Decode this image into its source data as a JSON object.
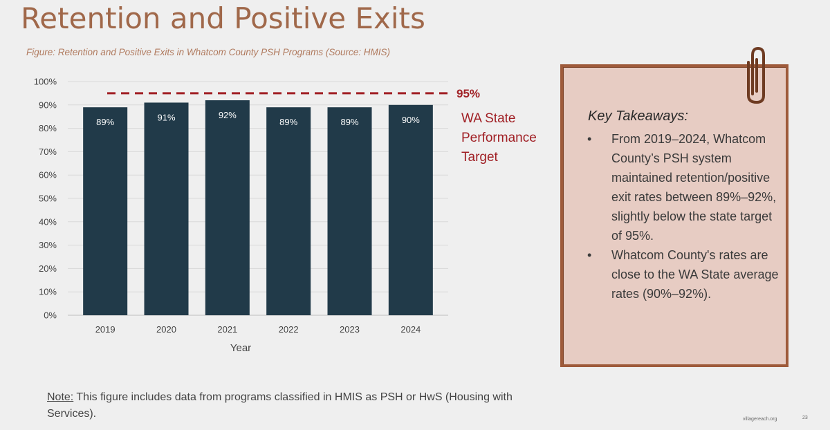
{
  "slide": {
    "title": "Retention and Positive Exits",
    "figure_caption": "Figure: Retention and Positive Exits in Whatcom County PSH Programs (Source: HMIS)",
    "note_label": "Note:",
    "note_text": " This figure includes data from programs classified in HMIS as PSH or HwS (Housing with Services).",
    "footer_site": "villagereach.org",
    "page_number": "23"
  },
  "chart_data": {
    "type": "bar",
    "categories": [
      "2019",
      "2020",
      "2021",
      "2022",
      "2023",
      "2024"
    ],
    "values": [
      89,
      91,
      92,
      89,
      89,
      90
    ],
    "data_labels": [
      "89%",
      "91%",
      "92%",
      "89%",
      "89%",
      "90%"
    ],
    "xlabel": "Year",
    "ylabel": "",
    "ylim": [
      0,
      100
    ],
    "yticks": [
      "0%",
      "10%",
      "20%",
      "30%",
      "40%",
      "50%",
      "60%",
      "70%",
      "80%",
      "90%",
      "100%"
    ],
    "grid": true,
    "bar_color": "#213a49",
    "reference_line": {
      "value": 95,
      "value_label": "95%",
      "label": "WA State Performance Target",
      "label_lines": [
        "WA State",
        "Performance",
        "Target"
      ],
      "color": "#a01f24",
      "style": "dashed"
    }
  },
  "takeaways": {
    "title": "Key Takeaways:",
    "bullet_glyph": "•",
    "items": [
      "From 2019–2024, Whatcom County’s PSH system maintained retention/positive exit rates between 89%–92%, slightly below the state target of 95%.",
      "Whatcom County's rates are close to the WA State average rates (90%–92%)."
    ]
  },
  "icons": {
    "paperclip": "paperclip-icon"
  }
}
